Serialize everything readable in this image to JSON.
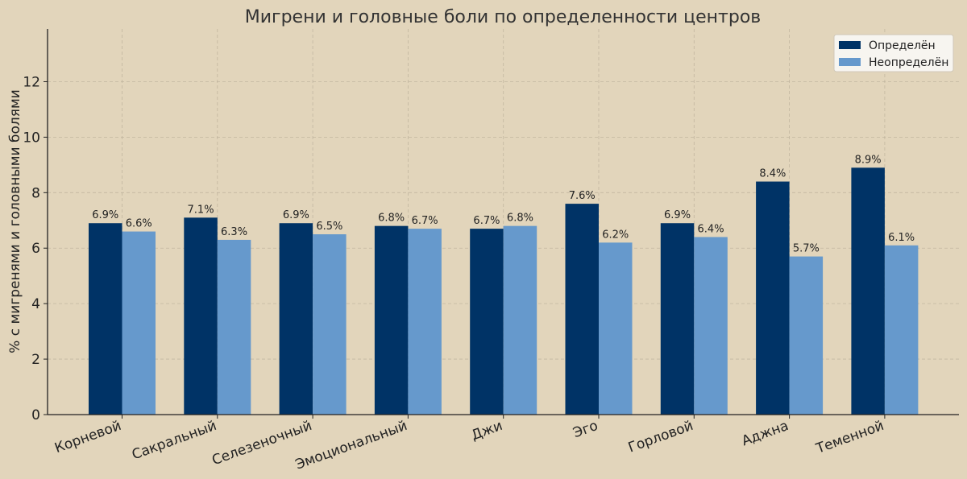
{
  "chart_data": {
    "type": "bar",
    "title": "Мигрени и головные боли по определенности центров",
    "xlabel": "",
    "ylabel": "% с мигренями и головными болями",
    "ylim": [
      0,
      13.9
    ],
    "yticks": [
      0,
      2,
      4,
      6,
      8,
      10,
      12
    ],
    "grid": true,
    "legend_position": "top-right",
    "categories": [
      "Корневой",
      "Сакральный",
      "Селезеночный",
      "Эмоциональный",
      "Джи",
      "Эго",
      "Горловой",
      "Аджна",
      "Теменной"
    ],
    "series": [
      {
        "name": "Определён",
        "color": "#003366",
        "values": [
          6.9,
          7.1,
          6.9,
          6.8,
          6.7,
          7.6,
          6.9,
          8.4,
          8.9
        ],
        "labels": [
          "6.9%",
          "7.1%",
          "6.9%",
          "6.8%",
          "6.7%",
          "7.6%",
          "6.9%",
          "8.4%",
          "8.9%"
        ]
      },
      {
        "name": "Неопределён",
        "color": "#6699cc",
        "values": [
          6.6,
          6.3,
          6.5,
          6.7,
          6.8,
          6.2,
          6.4,
          5.7,
          6.1
        ],
        "labels": [
          "6.6%",
          "6.3%",
          "6.5%",
          "6.7%",
          "6.8%",
          "6.2%",
          "6.4%",
          "5.7%",
          "6.1%"
        ]
      }
    ]
  }
}
